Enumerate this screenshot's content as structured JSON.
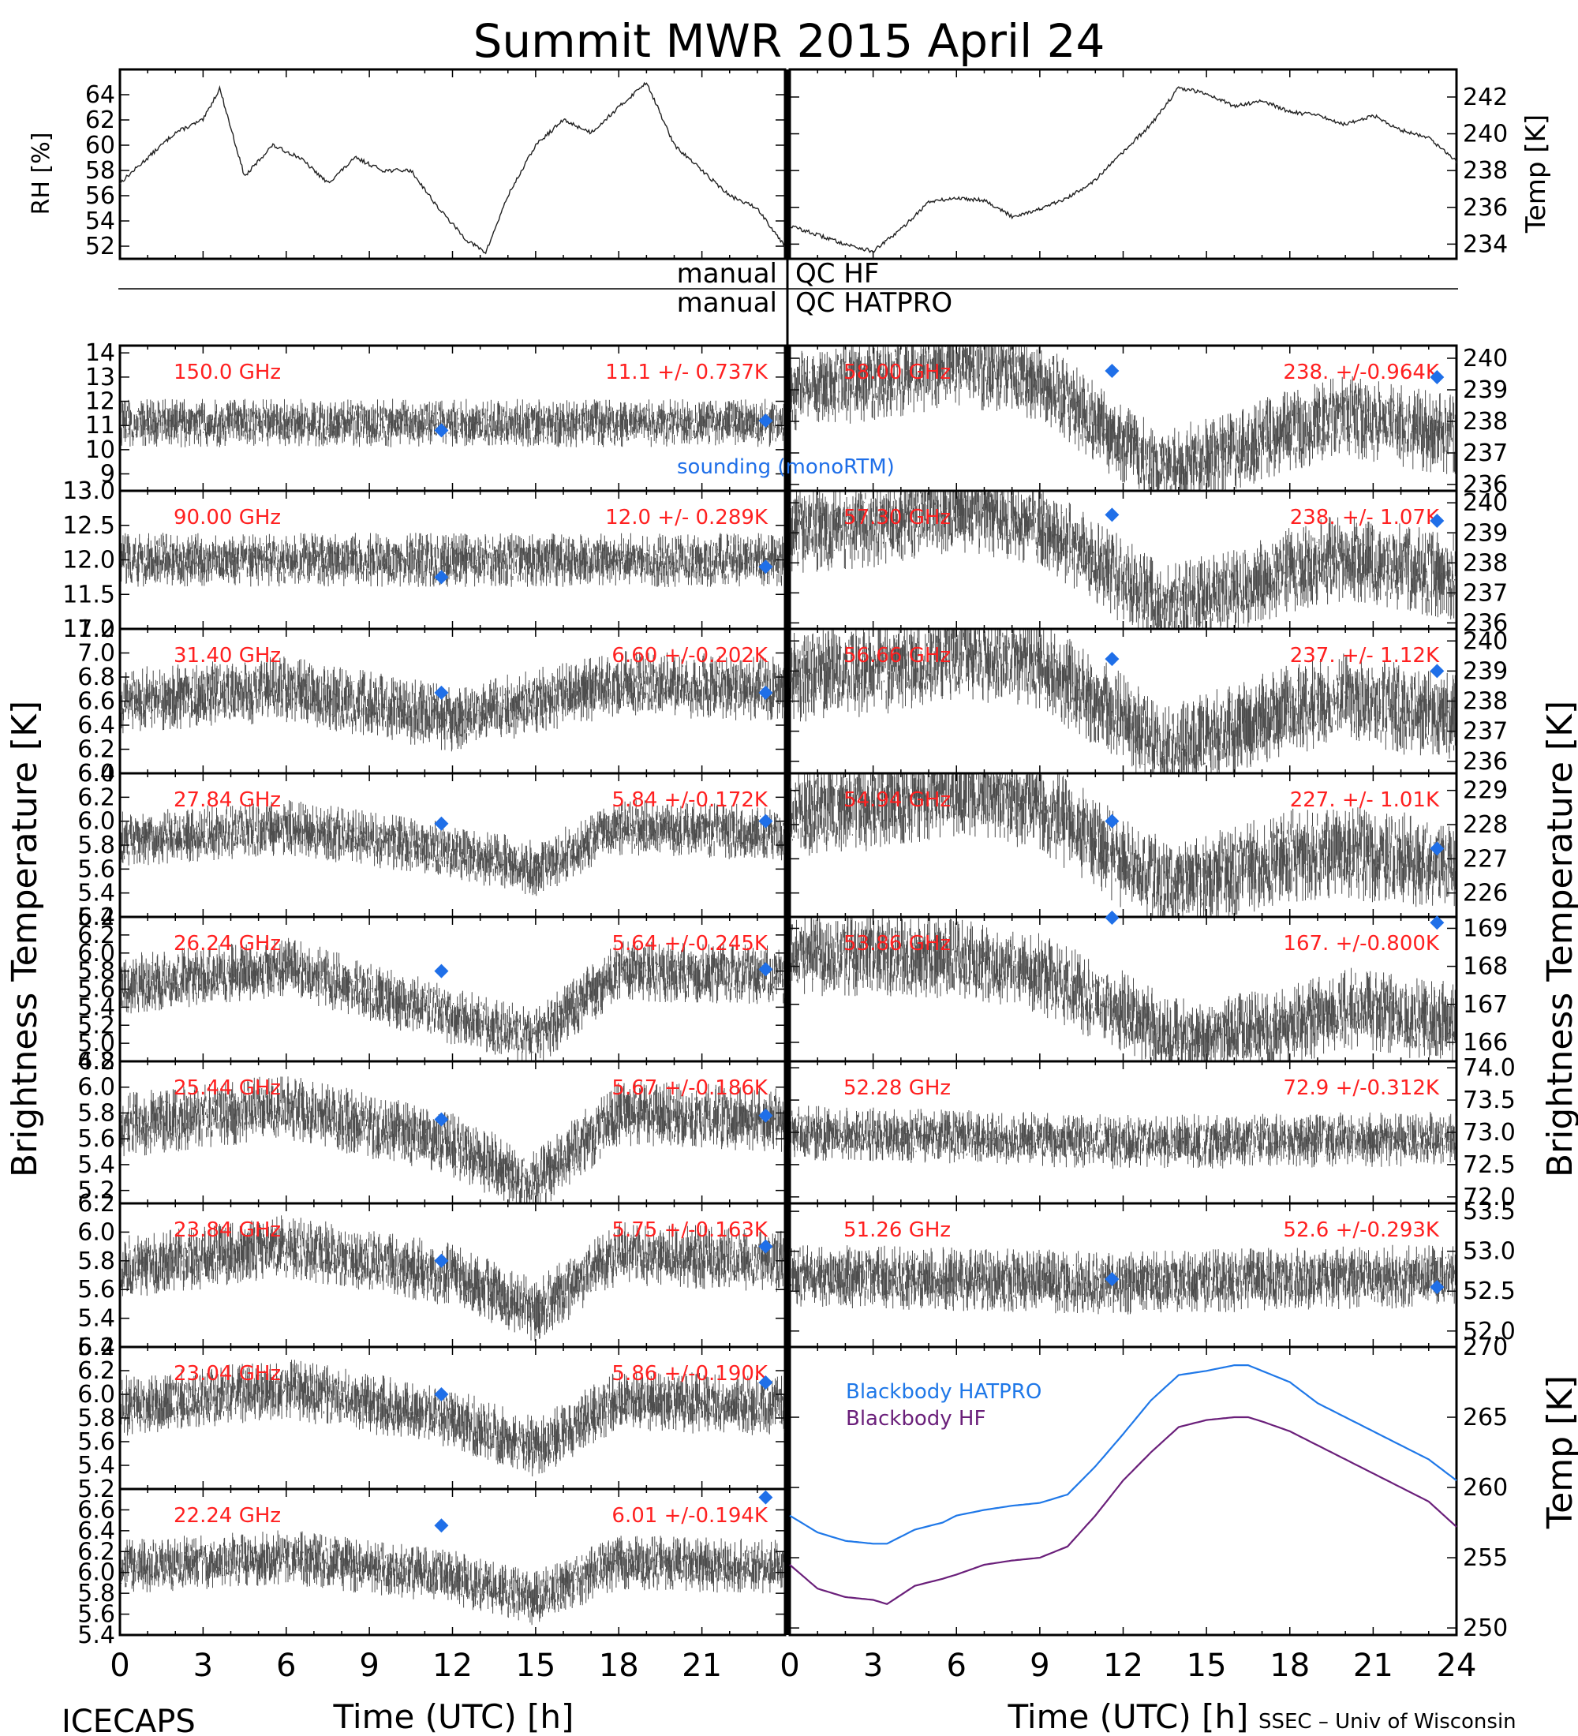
{
  "title": "Summit MWR 2015 April 24",
  "footer": {
    "left": "ICECAPS",
    "right": "SSEC – Univ of Wisconsin"
  },
  "qc_labels": {
    "hf_left": "manual",
    "hf_right": "QC HF",
    "hatpro_left": "manual",
    "hatpro_right": "QC HATPRO"
  },
  "axis_text": {
    "rh": "RH [%]",
    "temp_top": "Temp [K]",
    "tb_left": "Brightness Temperature [K]",
    "tb_right": "Brightness Temperature [K]",
    "temp_bb": "Temp [K]",
    "time_left": "Time (UTC) [h]",
    "time_right": "Time (UTC) [h]"
  },
  "time_ticks": [
    "0",
    "3",
    "6",
    "9",
    "12",
    "15",
    "18",
    "21"
  ],
  "time_ticks_right": [
    "0",
    "3",
    "6",
    "9",
    "12",
    "15",
    "18",
    "21",
    "24"
  ],
  "sounding_label": "sounding (monoRTM)",
  "colors": {
    "sounding": "#1f6fe8",
    "label_red": "#ff2020",
    "bb_hatpro": "#1f78e8",
    "bb_hf": "#6a1f7a"
  },
  "chart_data": [
    {
      "type": "line",
      "panel": "rh",
      "ylabel": "RH [%]",
      "ylim": [
        51,
        66
      ],
      "yticks": [
        "52",
        "54",
        "56",
        "58",
        "60",
        "62",
        "64"
      ],
      "xlim": [
        0,
        24
      ],
      "x": [
        0,
        1,
        2,
        3,
        3.6,
        4.5,
        5.5,
        6.5,
        7.5,
        8.5,
        9.5,
        10.5,
        11.5,
        12.5,
        13.2,
        14,
        15,
        16,
        17,
        18,
        19,
        20,
        21,
        22,
        23,
        24
      ],
      "values": [
        57,
        59,
        61,
        62,
        64.5,
        57.5,
        60,
        59,
        57,
        59,
        58,
        58,
        55,
        52.5,
        51.5,
        56,
        60,
        62,
        61,
        63,
        65,
        60,
        58,
        56,
        55,
        52
      ]
    },
    {
      "type": "line",
      "panel": "temp",
      "ylabel": "Temp [K]",
      "ylim": [
        233.2,
        243.5
      ],
      "yticks": [
        "234",
        "236",
        "238",
        "240",
        "242"
      ],
      "xlim": [
        0,
        24
      ],
      "x": [
        0,
        1,
        2,
        3,
        4,
        5,
        6,
        7,
        8,
        9,
        10,
        11,
        12,
        13,
        14,
        15,
        16,
        17,
        18,
        19,
        20,
        21,
        22,
        23,
        24
      ],
      "values": [
        235,
        234.5,
        234,
        233.6,
        234.8,
        236.3,
        236.5,
        236.4,
        235.5,
        235.9,
        236.5,
        237.5,
        239,
        240.5,
        242.5,
        242.2,
        241.5,
        241.8,
        241.2,
        241,
        240.5,
        241,
        240.2,
        239.8,
        238.5
      ]
    },
    {
      "type": "scatter",
      "panel": "tb-150",
      "channel": "150.0 GHz",
      "stats": "11.1 +/- 0.737K",
      "ylim": [
        8.3,
        14.3
      ],
      "yticks": [
        "9",
        "10",
        "11",
        "12",
        "13",
        "14"
      ],
      "mean": 11.1,
      "noise": 0.737,
      "trend_x": [
        0,
        24
      ],
      "trend_y": [
        11.1,
        11.1
      ],
      "sounding": [
        {
          "x": 11.6,
          "y": 10.8
        },
        {
          "x": 23.3,
          "y": 11.2
        }
      ]
    },
    {
      "type": "scatter",
      "panel": "tb-90",
      "channel": "90.00 GHz",
      "stats": "12.0 +/- 0.289K",
      "ylim": [
        11.0,
        13.0
      ],
      "yticks": [
        "11.0",
        "11.5",
        "12.0",
        "12.5",
        "13.0"
      ],
      "mean": 12.0,
      "noise": 0.289,
      "trend_x": [
        0,
        24
      ],
      "trend_y": [
        12.0,
        12.0
      ],
      "sounding": [
        {
          "x": 11.6,
          "y": 11.75
        },
        {
          "x": 23.3,
          "y": 11.9
        }
      ]
    },
    {
      "type": "scatter",
      "panel": "tb-31",
      "channel": "31.40 GHz",
      "stats": "6.60 +/-0.202K",
      "ylim": [
        6.0,
        7.2
      ],
      "yticks": [
        "6.0",
        "6.2",
        "6.4",
        "6.6",
        "6.8",
        "7.0",
        "7.2"
      ],
      "mean": 6.6,
      "noise": 0.202,
      "trend_x": [
        0,
        6,
        12,
        18,
        24
      ],
      "trend_y": [
        6.6,
        6.7,
        6.45,
        6.75,
        6.7
      ],
      "sounding": [
        {
          "x": 11.6,
          "y": 6.67
        },
        {
          "x": 23.3,
          "y": 6.67
        }
      ]
    },
    {
      "type": "scatter",
      "panel": "tb-27",
      "channel": "27.84 GHz",
      "stats": "5.84 +/-0.172K",
      "ylim": [
        5.2,
        6.4
      ],
      "yticks": [
        "5.2",
        "5.4",
        "5.6",
        "5.8",
        "6.0",
        "6.2",
        "6.4"
      ],
      "mean": 5.84,
      "noise": 0.172,
      "trend_x": [
        0,
        6,
        12,
        15,
        18,
        24
      ],
      "trend_y": [
        5.85,
        5.95,
        5.75,
        5.6,
        5.95,
        5.9
      ],
      "sounding": [
        {
          "x": 11.6,
          "y": 5.98
        },
        {
          "x": 23.3,
          "y": 6.0
        }
      ]
    },
    {
      "type": "scatter",
      "panel": "tb-26",
      "channel": "26.24 GHz",
      "stats": "5.64 +/-0.245K",
      "ylim": [
        4.8,
        6.4
      ],
      "yticks": [
        "4.8",
        "5.0",
        "5.2",
        "5.4",
        "5.6",
        "5.8",
        "6.0",
        "6.2",
        "6.4"
      ],
      "mean": 5.64,
      "noise": 0.245,
      "trend_x": [
        0,
        6,
        12,
        15,
        18,
        24
      ],
      "trend_y": [
        5.65,
        5.85,
        5.3,
        5.05,
        5.8,
        5.75
      ],
      "sounding": [
        {
          "x": 11.6,
          "y": 5.8
        },
        {
          "x": 23.3,
          "y": 5.82
        }
      ]
    },
    {
      "type": "scatter",
      "panel": "tb-25",
      "channel": "25.44 GHz",
      "stats": "5.67 +/-0.186K",
      "ylim": [
        5.1,
        6.2
      ],
      "yticks": [
        "5.2",
        "5.4",
        "5.6",
        "5.8",
        "6.0",
        "6.2"
      ],
      "mean": 5.67,
      "noise": 0.186,
      "trend_x": [
        0,
        6,
        12,
        15,
        18,
        24
      ],
      "trend_y": [
        5.7,
        5.85,
        5.55,
        5.25,
        5.8,
        5.75
      ],
      "sounding": [
        {
          "x": 11.6,
          "y": 5.75
        },
        {
          "x": 23.3,
          "y": 5.78
        }
      ]
    },
    {
      "type": "scatter",
      "panel": "tb-23.84",
      "channel": "23.84 GHz",
      "stats": "5.75 +/-0.163K",
      "ylim": [
        5.2,
        6.2
      ],
      "yticks": [
        "5.2",
        "5.4",
        "5.6",
        "5.8",
        "6.0",
        "6.2"
      ],
      "mean": 5.75,
      "noise": 0.163,
      "trend_x": [
        0,
        6,
        12,
        15,
        18,
        24
      ],
      "trend_y": [
        5.75,
        5.9,
        5.7,
        5.45,
        5.85,
        5.8
      ],
      "sounding": [
        {
          "x": 11.6,
          "y": 5.8
        },
        {
          "x": 23.3,
          "y": 5.9
        }
      ]
    },
    {
      "type": "scatter",
      "panel": "tb-23.04",
      "channel": "23.04 GHz",
      "stats": "5.86 +/-0.190K",
      "ylim": [
        5.2,
        6.4
      ],
      "yticks": [
        "5.2",
        "5.4",
        "5.6",
        "5.8",
        "6.0",
        "6.2",
        "6.4"
      ],
      "mean": 5.86,
      "noise": 0.19,
      "trend_x": [
        0,
        6,
        12,
        15,
        18,
        24
      ],
      "trend_y": [
        5.9,
        6.05,
        5.8,
        5.55,
        5.95,
        5.9
      ],
      "sounding": [
        {
          "x": 11.6,
          "y": 6.0
        },
        {
          "x": 23.3,
          "y": 6.1
        }
      ]
    },
    {
      "type": "scatter",
      "panel": "tb-22",
      "channel": "22.24 GHz",
      "stats": "6.01 +/-0.194K",
      "ylim": [
        5.4,
        6.8
      ],
      "yticks": [
        "5.4",
        "5.6",
        "5.8",
        "6.0",
        "6.2",
        "6.4",
        "6.6"
      ],
      "mean": 6.01,
      "noise": 0.194,
      "trend_x": [
        0,
        6,
        12,
        15,
        18,
        24
      ],
      "trend_y": [
        6.05,
        6.15,
        5.95,
        5.75,
        6.1,
        6.05
      ],
      "sounding": [
        {
          "x": 11.6,
          "y": 6.45
        },
        {
          "x": 23.3,
          "y": 6.72
        }
      ]
    },
    {
      "type": "scatter",
      "panel": "tb-58",
      "channel": "58.00 GHz",
      "stats": "238. +/-0.964K",
      "ylim": [
        235.8,
        240.4
      ],
      "yticks": [
        "236",
        "237",
        "238",
        "239",
        "240"
      ],
      "mean": 238,
      "noise": 0.964,
      "trend_x": [
        0,
        3,
        6,
        9,
        12,
        13.5,
        15,
        18,
        20,
        24
      ],
      "trend_y": [
        239,
        239.3,
        239.8,
        239.3,
        237.3,
        236.5,
        236.8,
        237.7,
        238.2,
        237.5
      ],
      "sounding": [
        {
          "x": 11.6,
          "y": 239.6
        },
        {
          "x": 23.3,
          "y": 239.4
        }
      ]
    },
    {
      "type": "scatter",
      "panel": "tb-57",
      "channel": "57.30 GHz",
      "stats": "238. +/- 1.07K",
      "ylim": [
        235.8,
        240.4
      ],
      "yticks": [
        "236",
        "237",
        "238",
        "239",
        "240"
      ],
      "mean": 238,
      "noise": 1.07,
      "trend_x": [
        0,
        3,
        6,
        9,
        12,
        13.5,
        15,
        18,
        20,
        24
      ],
      "trend_y": [
        239,
        239.3,
        239.8,
        239.3,
        237.4,
        236.5,
        236.8,
        237.8,
        238.2,
        237.5
      ],
      "sounding": [
        {
          "x": 11.6,
          "y": 239.6
        },
        {
          "x": 23.3,
          "y": 239.4
        }
      ]
    },
    {
      "type": "scatter",
      "panel": "tb-56",
      "channel": "56.66 GHz",
      "stats": "237. +/- 1.12K",
      "ylim": [
        235.6,
        240.4
      ],
      "yticks": [
        "236",
        "237",
        "238",
        "239",
        "240"
      ],
      "mean": 237,
      "noise": 1.12,
      "trend_x": [
        0,
        3,
        6,
        9,
        12,
        13.5,
        15,
        18,
        20,
        24
      ],
      "trend_y": [
        238.8,
        239,
        239.6,
        239.2,
        237.4,
        236.3,
        236.8,
        237.7,
        238.1,
        237.4
      ],
      "sounding": [
        {
          "x": 11.6,
          "y": 239.4
        },
        {
          "x": 23.3,
          "y": 239.0
        }
      ]
    },
    {
      "type": "scatter",
      "panel": "tb-54",
      "channel": "54.94 GHz",
      "stats": "227. +/- 1.01K",
      "ylim": [
        225.3,
        229.5
      ],
      "yticks": [
        "226",
        "227",
        "228",
        "229"
      ],
      "mean": 227,
      "noise": 1.01,
      "trend_x": [
        0,
        3,
        6,
        9,
        12,
        13.5,
        15,
        18,
        20,
        24
      ],
      "trend_y": [
        228.4,
        228.6,
        229,
        228.6,
        226.9,
        226.2,
        226.4,
        227.1,
        227.2,
        226.8
      ],
      "sounding": [
        {
          "x": 11.6,
          "y": 228.1
        },
        {
          "x": 23.3,
          "y": 227.3
        }
      ]
    },
    {
      "type": "scatter",
      "panel": "tb-53",
      "channel": "53.86 GHz",
      "stats": "167. +/-0.800K",
      "ylim": [
        165.5,
        169.3
      ],
      "yticks": [
        "166",
        "167",
        "168",
        "169"
      ],
      "mean": 167,
      "noise": 0.8,
      "trend_x": [
        0,
        3,
        6,
        9,
        12,
        13.5,
        15,
        18,
        20,
        24
      ],
      "trend_y": [
        168.3,
        168.3,
        168.2,
        167.8,
        166.8,
        166.2,
        166.1,
        166.4,
        166.9,
        166.5
      ],
      "sounding": [
        {
          "x": 11.6,
          "y": 169.5
        },
        {
          "x": 23.3,
          "y": 169.15
        }
      ]
    },
    {
      "type": "scatter",
      "panel": "tb-52",
      "channel": "52.28 GHz",
      "stats": "72.9 +/-0.312K",
      "ylim": [
        71.9,
        74.1
      ],
      "yticks": [
        "72.0",
        "72.5",
        "73.0",
        "73.5",
        "74.0"
      ],
      "mean": 72.9,
      "noise": 0.312,
      "trend_x": [
        0,
        12,
        24
      ],
      "trend_y": [
        73.0,
        72.85,
        72.9
      ],
      "sounding": []
    },
    {
      "type": "scatter",
      "panel": "tb-51",
      "channel": "51.26 GHz",
      "stats": "52.6 +/-0.293K",
      "ylim": [
        51.8,
        53.6
      ],
      "yticks": [
        "52.0",
        "52.5",
        "53.0",
        "53.5"
      ],
      "mean": 52.6,
      "noise": 0.293,
      "trend_x": [
        0,
        12,
        24
      ],
      "trend_y": [
        52.7,
        52.6,
        52.7
      ],
      "sounding": [
        {
          "x": 11.6,
          "y": 52.65
        },
        {
          "x": 23.3,
          "y": 52.55
        }
      ]
    },
    {
      "type": "line",
      "panel": "blackbody",
      "ylabel": "Temp [K]",
      "ylim": [
        249.5,
        270
      ],
      "yticks": [
        "250",
        "255",
        "260",
        "265",
        "270"
      ],
      "xlim": [
        0,
        24
      ],
      "x": [
        0,
        1,
        2,
        3,
        3.5,
        4.5,
        5.5,
        6,
        7,
        8,
        9,
        10,
        11,
        12,
        13,
        14,
        15,
        16,
        16.5,
        17,
        18,
        19,
        20,
        21,
        22,
        23,
        24
      ],
      "series": [
        {
          "name": "Blackbody HATPRO",
          "values": [
            258,
            256.8,
            256.2,
            256,
            256,
            257,
            257.5,
            258,
            258.4,
            258.7,
            258.9,
            259.5,
            261.5,
            263.8,
            266.2,
            268,
            268.3,
            268.7,
            268.7,
            268.3,
            267.5,
            266,
            265,
            264,
            263,
            262,
            260.5
          ]
        },
        {
          "name": "Blackbody HF",
          "values": [
            254.5,
            252.8,
            252.2,
            252,
            251.7,
            253,
            253.5,
            253.8,
            254.5,
            254.8,
            255,
            255.8,
            258,
            260.5,
            262.5,
            264.3,
            264.8,
            265,
            265,
            264.7,
            264,
            263,
            262,
            261,
            260,
            259,
            257.2
          ]
        }
      ]
    }
  ]
}
